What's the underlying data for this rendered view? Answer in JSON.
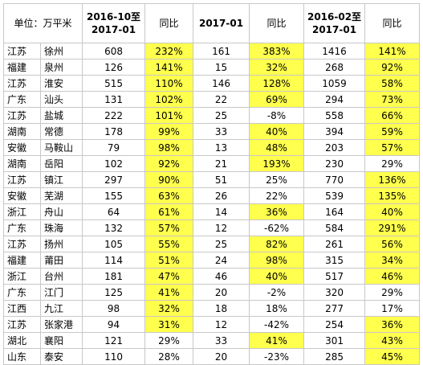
{
  "table": {
    "header": [
      "单位：万平米",
      "2016-10至\n2017-01",
      "同比",
      "2017-01",
      "同比",
      "2016-02至\n2017-01",
      "同比"
    ],
    "highlight_color": "#ffff4d",
    "rows": [
      {
        "cells": [
          "江苏",
          "徐州",
          "608",
          "232%",
          "161",
          "383%",
          "1416",
          "141%"
        ],
        "highlight": [
          3,
          5,
          7
        ]
      },
      {
        "cells": [
          "福建",
          "泉州",
          "126",
          "141%",
          "15",
          "32%",
          "268",
          "92%"
        ],
        "highlight": [
          3,
          5,
          7
        ]
      },
      {
        "cells": [
          "江苏",
          "淮安",
          "515",
          "110%",
          "146",
          "128%",
          "1059",
          "58%"
        ],
        "highlight": [
          3,
          5,
          7
        ]
      },
      {
        "cells": [
          "广东",
          "汕头",
          "131",
          "102%",
          "22",
          "69%",
          "294",
          "73%"
        ],
        "highlight": [
          3,
          5,
          7
        ]
      },
      {
        "cells": [
          "江苏",
          "盐城",
          "222",
          "101%",
          "25",
          "-8%",
          "558",
          "66%"
        ],
        "highlight": [
          3,
          7
        ]
      },
      {
        "cells": [
          "湖南",
          "常德",
          "178",
          "99%",
          "33",
          "40%",
          "394",
          "59%"
        ],
        "highlight": [
          3,
          5,
          7
        ]
      },
      {
        "cells": [
          "安徽",
          "马鞍山",
          "79",
          "98%",
          "13",
          "48%",
          "203",
          "57%"
        ],
        "highlight": [
          3,
          5,
          7
        ]
      },
      {
        "cells": [
          "湖南",
          "岳阳",
          "102",
          "92%",
          "21",
          "193%",
          "230",
          "29%"
        ],
        "highlight": [
          3,
          5
        ]
      },
      {
        "cells": [
          "江苏",
          "镇江",
          "297",
          "90%",
          "51",
          "25%",
          "770",
          "136%"
        ],
        "highlight": [
          3,
          7
        ]
      },
      {
        "cells": [
          "安徽",
          "芜湖",
          "155",
          "63%",
          "26",
          "22%",
          "539",
          "135%"
        ],
        "highlight": [
          3,
          7
        ]
      },
      {
        "cells": [
          "浙江",
          "舟山",
          "64",
          "61%",
          "14",
          "36%",
          "164",
          "40%"
        ],
        "highlight": [
          3,
          5,
          7
        ]
      },
      {
        "cells": [
          "广东",
          "珠海",
          "132",
          "57%",
          "12",
          "-62%",
          "584",
          "291%"
        ],
        "highlight": [
          3,
          7
        ]
      },
      {
        "cells": [
          "江苏",
          "扬州",
          "105",
          "55%",
          "25",
          "82%",
          "261",
          "56%"
        ],
        "highlight": [
          3,
          5,
          7
        ]
      },
      {
        "cells": [
          "福建",
          "莆田",
          "114",
          "51%",
          "24",
          "98%",
          "315",
          "34%"
        ],
        "highlight": [
          3,
          5,
          7
        ]
      },
      {
        "cells": [
          "浙江",
          "台州",
          "181",
          "47%",
          "46",
          "40%",
          "517",
          "46%"
        ],
        "highlight": [
          3,
          5,
          7
        ]
      },
      {
        "cells": [
          "广东",
          "江门",
          "125",
          "41%",
          "20",
          "-2%",
          "320",
          "29%"
        ],
        "highlight": [
          3
        ]
      },
      {
        "cells": [
          "江西",
          "九江",
          "98",
          "32%",
          "18",
          "18%",
          "277",
          "17%"
        ],
        "highlight": [
          3
        ]
      },
      {
        "cells": [
          "江苏",
          "张家港",
          "94",
          "31%",
          "12",
          "-42%",
          "254",
          "36%"
        ],
        "highlight": [
          3,
          7
        ]
      },
      {
        "cells": [
          "湖北",
          "襄阳",
          "121",
          "29%",
          "33",
          "41%",
          "301",
          "43%"
        ],
        "highlight": [
          5,
          7
        ]
      },
      {
        "cells": [
          "山东",
          "泰安",
          "110",
          "28%",
          "20",
          "-23%",
          "285",
          "45%"
        ],
        "highlight": [
          7
        ]
      }
    ]
  }
}
